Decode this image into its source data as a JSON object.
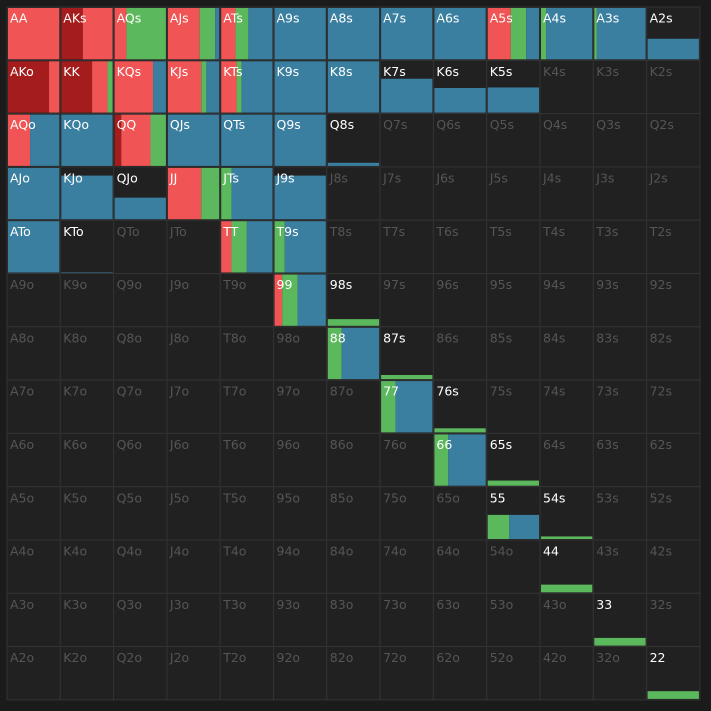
{
  "grid": {
    "colors": [
      "#a51c1c",
      "#f05454",
      "#5cb85c",
      "#3a7fa0"
    ],
    "rows": [
      [
        {
          "label": "AA",
          "freq": [
            0,
            100,
            0,
            0
          ],
          "weight": 100
        },
        {
          "label": "AKs",
          "freq": [
            42,
            58,
            0,
            0
          ],
          "weight": 100
        },
        {
          "label": "AQs",
          "freq": [
            0,
            23,
            77,
            0
          ],
          "weight": 100
        },
        {
          "label": "AJs",
          "freq": [
            0,
            62,
            30,
            8
          ],
          "weight": 100
        },
        {
          "label": "ATs",
          "freq": [
            0,
            28,
            25,
            47
          ],
          "weight": 100
        },
        {
          "label": "A9s",
          "freq": [
            0,
            0,
            0,
            100
          ],
          "weight": 100
        },
        {
          "label": "A8s",
          "freq": [
            0,
            0,
            0,
            100
          ],
          "weight": 100
        },
        {
          "label": "A7s",
          "freq": [
            0,
            0,
            0,
            100
          ],
          "weight": 100
        },
        {
          "label": "A6s",
          "freq": [
            0,
            0,
            0,
            100
          ],
          "weight": 100
        },
        {
          "label": "A5s",
          "freq": [
            0,
            45,
            30,
            25
          ],
          "weight": 100
        },
        {
          "label": "A4s",
          "freq": [
            0,
            0,
            10,
            90
          ],
          "weight": 100
        },
        {
          "label": "A3s",
          "freq": [
            0,
            0,
            5,
            95
          ],
          "weight": 100
        },
        {
          "label": "A2s",
          "freq": [
            0,
            0,
            0,
            100
          ],
          "weight": 40
        }
      ],
      [
        {
          "label": "AKo",
          "freq": [
            80,
            20,
            0,
            0
          ],
          "weight": 100
        },
        {
          "label": "KK",
          "freq": [
            60,
            30,
            10,
            0
          ],
          "weight": 100
        },
        {
          "label": "KQs",
          "freq": [
            0,
            75,
            0,
            25
          ],
          "weight": 100
        },
        {
          "label": "KJs",
          "freq": [
            0,
            65,
            10,
            25
          ],
          "weight": 100
        },
        {
          "label": "KTs",
          "freq": [
            0,
            30,
            10,
            60
          ],
          "weight": 100
        },
        {
          "label": "K9s",
          "freq": [
            0,
            0,
            0,
            100
          ],
          "weight": 100
        },
        {
          "label": "K8s",
          "freq": [
            0,
            0,
            0,
            100
          ],
          "weight": 100
        },
        {
          "label": "K7s",
          "freq": [
            0,
            0,
            0,
            100
          ],
          "weight": 66
        },
        {
          "label": "K6s",
          "freq": [
            0,
            0,
            0,
            100
          ],
          "weight": 48
        },
        {
          "label": "K5s",
          "freq": [
            0,
            0,
            0,
            100
          ],
          "weight": 49
        },
        {
          "label": "K4s"
        },
        {
          "label": "K3s"
        },
        {
          "label": "K2s"
        }
      ],
      [
        {
          "label": "AQo",
          "freq": [
            0,
            43,
            0,
            57
          ],
          "weight": 100
        },
        {
          "label": "KQo",
          "freq": [
            0,
            0,
            0,
            100
          ],
          "weight": 100
        },
        {
          "label": "QQ",
          "freq": [
            13,
            57,
            30,
            0
          ],
          "weight": 100
        },
        {
          "label": "QJs",
          "freq": [
            0,
            0,
            0,
            100
          ],
          "weight": 100
        },
        {
          "label": "QTs",
          "freq": [
            0,
            0,
            0,
            100
          ],
          "weight": 100
        },
        {
          "label": "Q9s",
          "freq": [
            0,
            0,
            0,
            100
          ],
          "weight": 100
        },
        {
          "label": "Q8s",
          "freq": [
            0,
            0,
            0,
            100
          ],
          "weight": 6
        },
        {
          "label": "Q7s"
        },
        {
          "label": "Q6s"
        },
        {
          "label": "Q5s"
        },
        {
          "label": "Q4s"
        },
        {
          "label": "Q3s"
        },
        {
          "label": "Q2s"
        }
      ],
      [
        {
          "label": "AJo",
          "freq": [
            0,
            0,
            0,
            100
          ],
          "weight": 100
        },
        {
          "label": "KJo",
          "freq": [
            0,
            0,
            0,
            100
          ],
          "weight": 85
        },
        {
          "label": "QJo",
          "freq": [
            0,
            0,
            0,
            100
          ],
          "weight": 42
        },
        {
          "label": "JJ",
          "freq": [
            0,
            65,
            35,
            0
          ],
          "weight": 100
        },
        {
          "label": "JTs",
          "freq": [
            0,
            0,
            20,
            80
          ],
          "weight": 100
        },
        {
          "label": "J9s",
          "freq": [
            0,
            0,
            0,
            100
          ],
          "weight": 85
        },
        {
          "label": "J8s"
        },
        {
          "label": "J7s"
        },
        {
          "label": "J6s"
        },
        {
          "label": "J5s"
        },
        {
          "label": "J4s"
        },
        {
          "label": "J3s"
        },
        {
          "label": "J2s"
        }
      ],
      [
        {
          "label": "ATo",
          "freq": [
            0,
            0,
            0,
            100
          ],
          "weight": 100
        },
        {
          "label": "KTo",
          "freq": [
            0,
            0,
            0,
            100
          ],
          "weight": 1
        },
        {
          "label": "QTo"
        },
        {
          "label": "JTo"
        },
        {
          "label": "TT",
          "freq": [
            0,
            20,
            30,
            50
          ],
          "weight": 100
        },
        {
          "label": "T9s",
          "freq": [
            0,
            0,
            20,
            80
          ],
          "weight": 100
        },
        {
          "label": "T8s"
        },
        {
          "label": "T7s"
        },
        {
          "label": "T6s"
        },
        {
          "label": "T5s"
        },
        {
          "label": "T4s"
        },
        {
          "label": "T3s"
        },
        {
          "label": "T2s"
        }
      ],
      [
        {
          "label": "A9o"
        },
        {
          "label": "K9o"
        },
        {
          "label": "Q9o"
        },
        {
          "label": "J9o"
        },
        {
          "label": "T9o"
        },
        {
          "label": "99",
          "freq": [
            0,
            15,
            30,
            55
          ],
          "weight": 100
        },
        {
          "label": "98s",
          "freq": [
            0,
            0,
            100,
            0
          ],
          "weight": 13
        },
        {
          "label": "97s"
        },
        {
          "label": "96s"
        },
        {
          "label": "95s"
        },
        {
          "label": "94s"
        },
        {
          "label": "93s"
        },
        {
          "label": "92s"
        }
      ],
      [
        {
          "label": "A8o"
        },
        {
          "label": "K8o"
        },
        {
          "label": "Q8o"
        },
        {
          "label": "J8o"
        },
        {
          "label": "T8o"
        },
        {
          "label": "98o"
        },
        {
          "label": "88",
          "freq": [
            0,
            0,
            27,
            73
          ],
          "weight": 100
        },
        {
          "label": "87s",
          "freq": [
            0,
            0,
            100,
            0
          ],
          "weight": 8
        },
        {
          "label": "86s"
        },
        {
          "label": "85s"
        },
        {
          "label": "84s"
        },
        {
          "label": "83s"
        },
        {
          "label": "82s"
        }
      ],
      [
        {
          "label": "A7o"
        },
        {
          "label": "K7o"
        },
        {
          "label": "Q7o"
        },
        {
          "label": "J7o"
        },
        {
          "label": "T7o"
        },
        {
          "label": "97o"
        },
        {
          "label": "87o"
        },
        {
          "label": "77",
          "freq": [
            0,
            0,
            28,
            72
          ],
          "weight": 100
        },
        {
          "label": "76s",
          "freq": [
            0,
            0,
            100,
            0
          ],
          "weight": 8
        },
        {
          "label": "75s"
        },
        {
          "label": "74s"
        },
        {
          "label": "73s"
        },
        {
          "label": "72s"
        }
      ],
      [
        {
          "label": "A6o"
        },
        {
          "label": "K6o"
        },
        {
          "label": "Q6o"
        },
        {
          "label": "J6o"
        },
        {
          "label": "T6o"
        },
        {
          "label": "96o"
        },
        {
          "label": "86o"
        },
        {
          "label": "76o"
        },
        {
          "label": "66",
          "freq": [
            0,
            0,
            27,
            73
          ],
          "weight": 100
        },
        {
          "label": "65s",
          "freq": [
            0,
            0,
            100,
            0
          ],
          "weight": 10
        },
        {
          "label": "64s"
        },
        {
          "label": "63s"
        },
        {
          "label": "62s"
        }
      ],
      [
        {
          "label": "A5o"
        },
        {
          "label": "K5o"
        },
        {
          "label": "Q5o"
        },
        {
          "label": "J5o"
        },
        {
          "label": "T5o"
        },
        {
          "label": "95o"
        },
        {
          "label": "85o"
        },
        {
          "label": "75o"
        },
        {
          "label": "65o"
        },
        {
          "label": "55",
          "freq": [
            0,
            0,
            42,
            58
          ],
          "weight": 47
        },
        {
          "label": "54s",
          "freq": [
            0,
            0,
            100,
            0
          ],
          "weight": 5
        },
        {
          "label": "53s"
        },
        {
          "label": "52s"
        }
      ],
      [
        {
          "label": "A4o"
        },
        {
          "label": "K4o"
        },
        {
          "label": "Q4o"
        },
        {
          "label": "J4o"
        },
        {
          "label": "T4o"
        },
        {
          "label": "94o"
        },
        {
          "label": "84o"
        },
        {
          "label": "74o"
        },
        {
          "label": "64o"
        },
        {
          "label": "54o"
        },
        {
          "label": "44",
          "freq": [
            0,
            0,
            100,
            0
          ],
          "weight": 15
        },
        {
          "label": "43s"
        },
        {
          "label": "42s"
        }
      ],
      [
        {
          "label": "A3o"
        },
        {
          "label": "K3o"
        },
        {
          "label": "Q3o"
        },
        {
          "label": "J3o"
        },
        {
          "label": "T3o"
        },
        {
          "label": "93o"
        },
        {
          "label": "83o"
        },
        {
          "label": "73o"
        },
        {
          "label": "63o"
        },
        {
          "label": "53o"
        },
        {
          "label": "43o"
        },
        {
          "label": "33",
          "freq": [
            0,
            0,
            100,
            0
          ],
          "weight": 15
        },
        {
          "label": "32s"
        }
      ],
      [
        {
          "label": "A2o"
        },
        {
          "label": "K2o"
        },
        {
          "label": "Q2o"
        },
        {
          "label": "J2o"
        },
        {
          "label": "T2o"
        },
        {
          "label": "92o"
        },
        {
          "label": "82o"
        },
        {
          "label": "72o"
        },
        {
          "label": "62o"
        },
        {
          "label": "52o"
        },
        {
          "label": "42o"
        },
        {
          "label": "32o"
        },
        {
          "label": "22",
          "freq": [
            0,
            0,
            100,
            0
          ],
          "weight": 15
        }
      ]
    ]
  }
}
